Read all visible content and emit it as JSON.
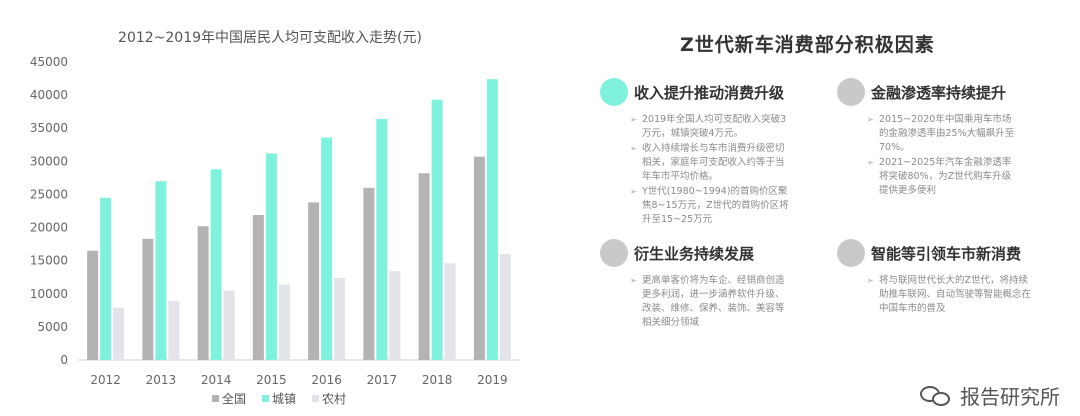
{
  "chart_data": {
    "type": "bar",
    "title": "2012~2019年中国居民人均可支配收入走势(元)",
    "categories": [
      "2012",
      "2013",
      "2014",
      "2015",
      "2016",
      "2017",
      "2018",
      "2019"
    ],
    "series": [
      {
        "name": "全国",
        "color": "#b3b3b3",
        "values": [
          16500,
          18300,
          20200,
          21900,
          23800,
          26000,
          28200,
          30700
        ]
      },
      {
        "name": "城镇",
        "color": "#7ef2dc",
        "values": [
          24500,
          27000,
          28800,
          31200,
          33600,
          36400,
          39300,
          42400
        ]
      },
      {
        "name": "农村",
        "color": "#e3e3e9",
        "values": [
          7900,
          8900,
          10500,
          11400,
          12400,
          13400,
          14600,
          16000
        ]
      }
    ],
    "ylim": [
      0,
      45000
    ],
    "yticks": [
      "0",
      "5000",
      "10000",
      "15000",
      "20000",
      "25000",
      "30000",
      "35000",
      "40000",
      "45000"
    ],
    "grid": false,
    "legend_position": "bottom"
  },
  "right_title": "Z世代新车消费部分积极因素",
  "cards": [
    {
      "title": "收入提升推动消费升级",
      "color": "#7ef2dc",
      "bullets": [
        "2019年全国人均可支配收入突破3万元，城镇突破4万元。",
        "收入持续增长与车市消费升级密切相关，家庭年可支配收入约等于当年车市平均价格。",
        "Y世代(1980~1994)的首购价区聚焦8~15万元，Z世代的首购价区将升至15~25万元"
      ]
    },
    {
      "title": "金融渗透率持续提升",
      "color": "#c9c9c9",
      "bullets": [
        "2015~2020年中国乘用车市场的金融渗透率由25%大幅飙升至70%。",
        "2021~2025年汽车金融渗透率将突破80%，为Z世代购车升级提供更多便利"
      ]
    },
    {
      "title": "衍生业务持续发展",
      "color": "#c9c9c9",
      "bullets": [
        "更高单客价将为车企、经销商创造更多利润，进一步涵养软件升级、改装、维修、保养、装饰、美容等相关细分领域"
      ]
    },
    {
      "title": "智能等引领车市新消费",
      "color": "#c9c9c9",
      "bullets": [
        "将与联网世代长大的Z世代，将持续助推车联网、自动驾驶等智能概念在中国车市的普及"
      ]
    }
  ],
  "footer": {
    "text": "报告研究所"
  }
}
